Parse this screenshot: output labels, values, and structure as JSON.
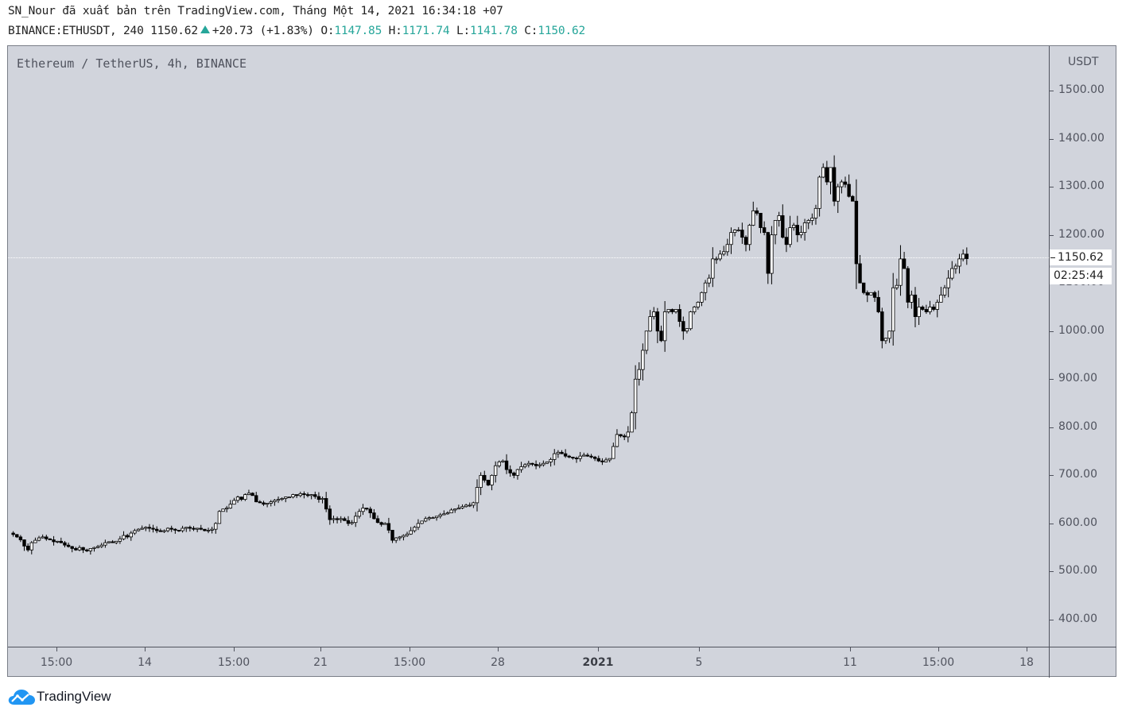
{
  "header": {
    "line1": "SN_Nour đã xuất bản trên TradingView.com, Tháng Một 14, 2021 16:34:18 +07",
    "symbol": "BINANCE:ETHUSDT, 240",
    "last": "1150.62",
    "change": "+20.73 (+1.83%)",
    "o_label": "O:",
    "o": "1147.85",
    "h_label": "H:",
    "h": "1171.74",
    "l_label": "L:",
    "l": "1141.78",
    "c_label": "C:",
    "c": "1150.62"
  },
  "chart": {
    "title": "Ethereum / TetherUS, 4h, BINANCE",
    "unit": "USDT",
    "last_price_label": "1150.62",
    "countdown": "02:25:44",
    "logo_text": "TradingView",
    "colors": {
      "background": "#d1d4dc",
      "up_body": "#ffffff",
      "down_body": "#000000",
      "accent": "#26a69a",
      "logo": "#2196f3"
    }
  },
  "chart_data": {
    "type": "candlestick",
    "title": "Ethereum / TetherUS, 4h, BINANCE",
    "xlabel": "",
    "ylabel": "USDT",
    "ylim": [
      330,
      1560
    ],
    "y_ticks": [
      "1500.00",
      "1400.00",
      "1300.00",
      "1200.00",
      "1100.00",
      "1000.00",
      "900.00",
      "800.00",
      "700.00",
      "600.00",
      "500.00",
      "400.00"
    ],
    "y_tick_values": [
      1500,
      1400,
      1300,
      1200,
      1100,
      1000,
      900,
      800,
      700,
      600,
      500,
      400
    ],
    "x_ticks": [
      {
        "label": "15:00",
        "x": 71,
        "bold": false
      },
      {
        "label": "14",
        "x": 182,
        "bold": false
      },
      {
        "label": "15:00",
        "x": 294,
        "bold": false
      },
      {
        "label": "21",
        "x": 403,
        "bold": false
      },
      {
        "label": "15:00",
        "x": 515,
        "bold": false
      },
      {
        "label": "28",
        "x": 626,
        "bold": false
      },
      {
        "label": "2021",
        "x": 752,
        "bold": true
      },
      {
        "label": "5",
        "x": 879,
        "bold": false
      },
      {
        "label": "11",
        "x": 1069,
        "bold": false
      },
      {
        "label": "15:00",
        "x": 1180,
        "bold": false
      },
      {
        "label": "18",
        "x": 1291,
        "bold": false
      }
    ],
    "last_price": 1150.62,
    "closes": [
      580,
      577,
      572,
      566,
      553,
      545,
      560,
      565,
      570,
      572,
      568,
      566,
      562,
      563,
      560,
      555,
      552,
      548,
      545,
      550,
      545,
      543,
      548,
      550,
      552,
      555,
      560,
      562,
      560,
      563,
      568,
      575,
      572,
      580,
      585,
      588,
      590,
      592,
      590,
      588,
      585,
      583,
      585,
      590,
      588,
      586,
      585,
      590,
      592,
      590,
      588,
      590,
      588,
      585,
      586,
      588,
      600,
      625,
      630,
      632,
      640,
      648,
      655,
      650,
      660,
      663,
      658,
      645,
      643,
      640,
      642,
      645,
      648,
      650,
      652,
      655,
      655,
      660,
      658,
      662,
      660,
      658,
      660,
      656,
      650,
      652,
      630,
      608,
      610,
      608,
      610,
      606,
      600,
      602,
      615,
      625,
      632,
      630,
      622,
      610,
      602,
      598,
      600,
      586,
      565,
      570,
      572,
      575,
      578,
      585,
      592,
      600,
      605,
      610,
      612,
      612,
      615,
      618,
      620,
      622,
      628,
      630,
      632,
      635,
      638,
      638,
      643,
      675,
      700,
      690,
      680,
      700,
      720,
      728,
      730,
      712,
      705,
      700,
      712,
      718,
      722,
      725,
      723,
      720,
      722,
      725,
      728,
      733,
      745,
      748,
      745,
      740,
      738,
      736,
      735,
      740,
      742,
      740,
      738,
      735,
      730,
      728,
      732,
      735,
      760,
      785,
      782,
      780,
      790,
      830,
      900,
      920,
      960,
      1000,
      1030,
      1040,
      1000,
      980,
      1040,
      1045,
      1040,
      1045,
      1020,
      1000,
      1005,
      1040,
      1050,
      1060,
      1080,
      1100,
      1110,
      1150,
      1150,
      1160,
      1165,
      1180,
      1205,
      1210,
      1210,
      1195,
      1180,
      1220,
      1250,
      1245,
      1215,
      1205,
      1120,
      1200,
      1230,
      1240,
      1195,
      1180,
      1215,
      1220,
      1200,
      1205,
      1225,
      1230,
      1235,
      1255,
      1320,
      1340,
      1310,
      1340,
      1270,
      1300,
      1310,
      1305,
      1280,
      1270,
      1140,
      1100,
      1080,
      1075,
      1080,
      1070,
      1040,
      980,
      985,
      1000,
      1090,
      1095,
      1150,
      1130,
      1060,
      1075,
      1030,
      1050,
      1045,
      1040,
      1050,
      1045,
      1060,
      1075,
      1090,
      1110,
      1130,
      1135,
      1150,
      1160,
      1150.62
    ],
    "x_start": 12,
    "x_step": 4.63
  }
}
